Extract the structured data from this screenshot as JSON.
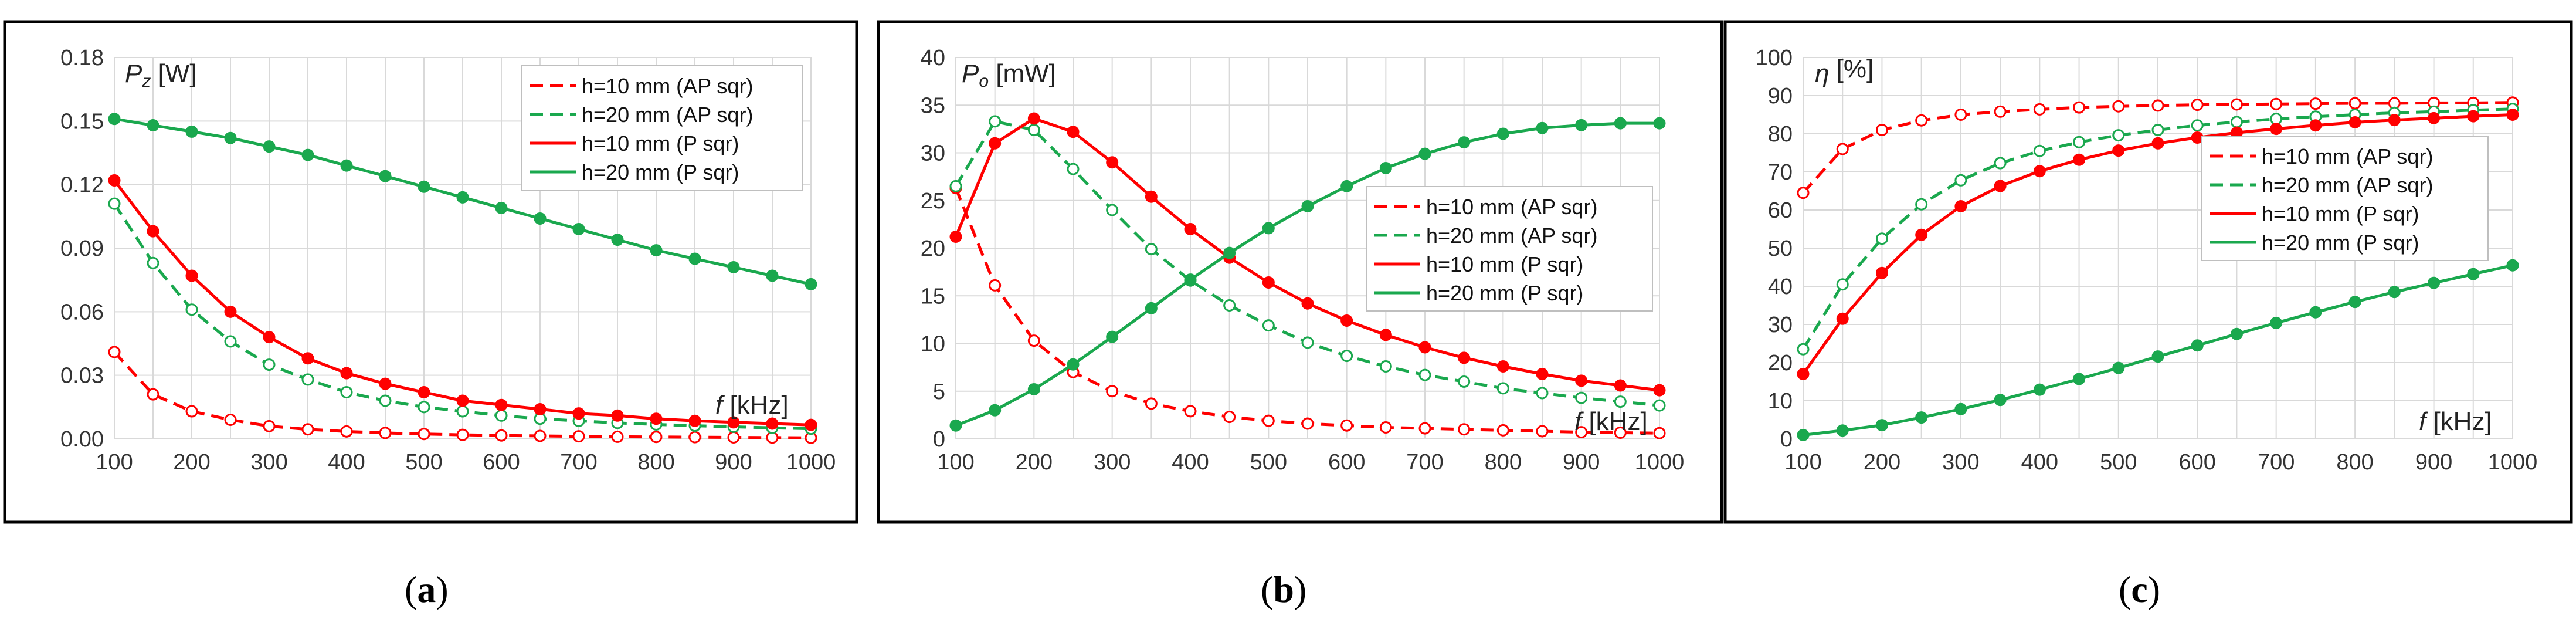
{
  "colors": {
    "red": "#ff0000",
    "green": "#1aa84e",
    "grid": "#d9d9d9",
    "frame": "#000000"
  },
  "chart_data": [
    {
      "type": "line",
      "panel": "(a)",
      "panel_letter": "a",
      "ylabel_var": "P",
      "ylabel_sub": "z",
      "ylabel_unit": " [W]",
      "xlabel_var": "f",
      "xlabel_unit": " [kHz]",
      "xlim": [
        100,
        1000
      ],
      "ylim": [
        0,
        0.18
      ],
      "xticks": [
        "100",
        "200",
        "300",
        "400",
        "500",
        "600",
        "700",
        "800",
        "900",
        "1000"
      ],
      "yticks": [
        "0.00",
        "0.03",
        "0.06",
        "0.09",
        "0.12",
        "0.15",
        "0.18"
      ],
      "legend_position": "top-right",
      "x": [
        100,
        150,
        200,
        250,
        300,
        350,
        400,
        450,
        500,
        550,
        600,
        650,
        700,
        750,
        800,
        850,
        900,
        950,
        1000
      ],
      "series": [
        {
          "name": "h=10 mm (AP sqr)",
          "color": "red",
          "dashed": true,
          "filled": false,
          "values": [
            0.041,
            0.021,
            0.013,
            0.009,
            0.006,
            0.0045,
            0.0035,
            0.0028,
            0.0023,
            0.0019,
            0.0016,
            0.0014,
            0.0012,
            0.001,
            0.0009,
            0.0008,
            0.0007,
            0.0006,
            0.0005
          ]
        },
        {
          "name": "h=20 mm (AP sqr)",
          "color": "green",
          "dashed": true,
          "filled": false,
          "values": [
            0.111,
            0.083,
            0.061,
            0.046,
            0.035,
            0.028,
            0.022,
            0.018,
            0.015,
            0.013,
            0.011,
            0.0095,
            0.0085,
            0.0075,
            0.0068,
            0.0062,
            0.0057,
            0.0052,
            0.0048
          ]
        },
        {
          "name": "h=10 mm (P sqr)",
          "color": "red",
          "dashed": false,
          "filled": true,
          "values": [
            0.122,
            0.098,
            0.077,
            0.06,
            0.048,
            0.038,
            0.031,
            0.026,
            0.022,
            0.018,
            0.016,
            0.014,
            0.012,
            0.011,
            0.0095,
            0.0085,
            0.0078,
            0.0072,
            0.0066
          ]
        },
        {
          "name": "h=20 mm (P sqr)",
          "color": "green",
          "dashed": false,
          "filled": true,
          "values": [
            0.151,
            0.148,
            0.145,
            0.142,
            0.138,
            0.134,
            0.129,
            0.124,
            0.119,
            0.114,
            0.109,
            0.104,
            0.099,
            0.094,
            0.089,
            0.085,
            0.081,
            0.077,
            0.073
          ]
        }
      ]
    },
    {
      "type": "line",
      "panel": "(b)",
      "panel_letter": "b",
      "ylabel_var": "P",
      "ylabel_sub": "o",
      "ylabel_unit": " [mW]",
      "xlabel_var": "f",
      "xlabel_unit": " [kHz]",
      "xlim": [
        100,
        1000
      ],
      "ylim": [
        0,
        40
      ],
      "xticks": [
        "100",
        "200",
        "300",
        "400",
        "500",
        "600",
        "700",
        "800",
        "900",
        "1000"
      ],
      "yticks": [
        "0",
        "5",
        "10",
        "15",
        "20",
        "25",
        "30",
        "35",
        "40"
      ],
      "legend_position": "center-right",
      "x": [
        100,
        150,
        200,
        250,
        300,
        350,
        400,
        450,
        500,
        550,
        600,
        650,
        700,
        750,
        800,
        850,
        900,
        950,
        1000
      ],
      "series": [
        {
          "name": "h=10 mm (AP sqr)",
          "color": "red",
          "dashed": true,
          "filled": false,
          "values": [
            26.3,
            16.1,
            10.3,
            7.0,
            5.0,
            3.7,
            2.9,
            2.3,
            1.9,
            1.6,
            1.4,
            1.2,
            1.1,
            1.0,
            0.9,
            0.8,
            0.7,
            0.65,
            0.6
          ]
        },
        {
          "name": "h=20 mm (AP sqr)",
          "color": "green",
          "dashed": true,
          "filled": false,
          "values": [
            26.5,
            33.3,
            32.4,
            28.3,
            24.0,
            19.9,
            16.6,
            14.0,
            11.9,
            10.1,
            8.7,
            7.6,
            6.7,
            6.0,
            5.3,
            4.8,
            4.3,
            3.9,
            3.5
          ]
        },
        {
          "name": "h=10 mm (P sqr)",
          "color": "red",
          "dashed": false,
          "filled": true,
          "values": [
            21.2,
            31.0,
            33.6,
            32.2,
            29.0,
            25.4,
            22.0,
            19.0,
            16.4,
            14.2,
            12.4,
            10.9,
            9.6,
            8.5,
            7.6,
            6.8,
            6.1,
            5.6,
            5.1
          ]
        },
        {
          "name": "h=20 mm (P sqr)",
          "color": "green",
          "dashed": false,
          "filled": true,
          "values": [
            1.4,
            3.0,
            5.2,
            7.8,
            10.7,
            13.7,
            16.7,
            19.5,
            22.1,
            24.4,
            26.5,
            28.4,
            29.9,
            31.1,
            32.0,
            32.6,
            32.9,
            33.1,
            33.1
          ]
        }
      ]
    },
    {
      "type": "line",
      "panel": "(c)",
      "panel_letter": "c",
      "ylabel_var": "η",
      "ylabel_sub": "",
      "ylabel_unit": " [%]",
      "xlabel_var": "f",
      "xlabel_unit": " [kHz]",
      "xlim": [
        100,
        1000
      ],
      "ylim": [
        0,
        100
      ],
      "xticks": [
        "100",
        "200",
        "300",
        "400",
        "500",
        "600",
        "700",
        "800",
        "900",
        "1000"
      ],
      "yticks": [
        "0",
        "10",
        "20",
        "30",
        "40",
        "50",
        "60",
        "70",
        "80",
        "90",
        "100"
      ],
      "legend_position": "center-right",
      "x": [
        100,
        150,
        200,
        250,
        300,
        350,
        400,
        450,
        500,
        550,
        600,
        650,
        700,
        750,
        800,
        850,
        900,
        950,
        1000
      ],
      "series": [
        {
          "name": "h=10 mm (AP sqr)",
          "color": "red",
          "dashed": true,
          "filled": false,
          "values": [
            64.5,
            76.0,
            81.0,
            83.5,
            85.0,
            85.8,
            86.4,
            86.9,
            87.2,
            87.4,
            87.6,
            87.7,
            87.8,
            87.9,
            88.0,
            88.0,
            88.1,
            88.1,
            88.2
          ]
        },
        {
          "name": "h=20 mm (AP sqr)",
          "color": "green",
          "dashed": true,
          "filled": false,
          "values": [
            23.5,
            40.5,
            52.5,
            61.5,
            67.8,
            72.3,
            75.5,
            77.8,
            79.6,
            81.0,
            82.2,
            83.1,
            83.9,
            84.5,
            85.0,
            85.5,
            85.8,
            86.2,
            86.5
          ]
        },
        {
          "name": "h=10 mm (P sqr)",
          "color": "red",
          "dashed": false,
          "filled": true,
          "values": [
            17.0,
            31.5,
            43.5,
            53.5,
            61.0,
            66.3,
            70.2,
            73.2,
            75.6,
            77.5,
            79.0,
            80.3,
            81.3,
            82.2,
            83.0,
            83.6,
            84.1,
            84.6,
            85.0
          ]
        },
        {
          "name": "h=20 mm (P sqr)",
          "color": "green",
          "dashed": false,
          "filled": true,
          "values": [
            1.0,
            2.2,
            3.6,
            5.6,
            7.8,
            10.2,
            12.9,
            15.7,
            18.6,
            21.6,
            24.5,
            27.5,
            30.4,
            33.2,
            35.9,
            38.5,
            40.9,
            43.2,
            45.5
          ]
        }
      ]
    }
  ]
}
